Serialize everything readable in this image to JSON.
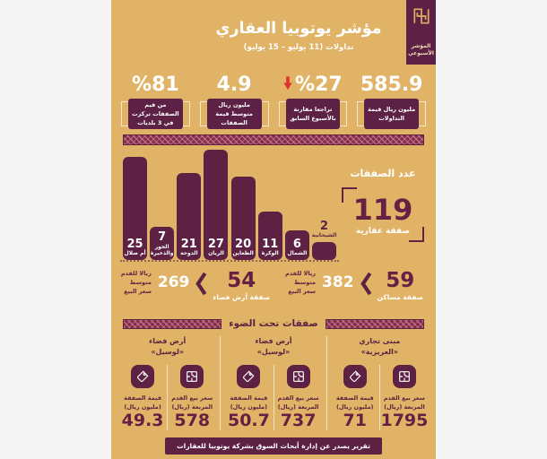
{
  "header": {
    "title": "مؤشر يوتوبيا العقاري",
    "subtitle": "تداولات (11 يوليو – 15 يوليو)",
    "badge": {
      "line1": "المؤشر",
      "line2": "الأسبوعي",
      "logo_icon": "utopia-kufic-logo"
    }
  },
  "colors": {
    "maroon": "#5d2145",
    "tan": "#e1b366",
    "red": "#e0332b",
    "white": "#ffffff"
  },
  "top_stats": [
    {
      "value": "585.9",
      "label": "مليون ريال قيمة التداولات",
      "trend_icon": ""
    },
    {
      "value": "%27",
      "label": "تراجعا مقارنة بالأسبوع السابق",
      "trend_icon": "red-down-arrow"
    },
    {
      "value": "4.9",
      "label": "مليون ريال متوسط قيمة الصفقات",
      "trend_icon": ""
    },
    {
      "value": "%81",
      "label": "من قيم الصفقات تركزت في 3 بلديات",
      "trend_icon": ""
    }
  ],
  "chart_data": {
    "type": "bar",
    "title": "عدد الصفقات",
    "total": "119",
    "total_caption": "صفقة عقارية",
    "categories": [
      "الشيحانية",
      "الشمال",
      "الوكرة",
      "الظعاين",
      "الريان",
      "الدوحة",
      "الخور والذخيرة",
      "أم صلال"
    ],
    "values": [
      2,
      6,
      11,
      20,
      27,
      21,
      7,
      25
    ],
    "ylim": [
      0,
      27
    ],
    "orientation": "right-to-left",
    "bar_color": "#5d2144",
    "grid": false
  },
  "mid_stats": [
    {
      "count": "59",
      "count_caption": "صفقة مساكن",
      "price": "382",
      "price_caption": "ريالا للقدم متوسط سعر البيع"
    },
    {
      "count": "54",
      "count_caption": "صفقة أرض فضاء",
      "price": "269",
      "price_caption": "ريالا للقدم متوسط سعر البيع"
    }
  ],
  "spotlight": {
    "title": "صفقات تحت الضوء",
    "sqft_label": "سعر بيع القدم المربعة (ريال)",
    "value_label": "قيمة الصفقة (مليون ريال)",
    "deals": [
      {
        "name_line1": "مبنى تجاري",
        "name_line2": "«العزيزية»",
        "price_per_sqft": "1795",
        "deal_value": "71"
      },
      {
        "name_line1": "أرض فضاء",
        "name_line2": "«لوسيل»",
        "price_per_sqft": "737",
        "deal_value": "50.7"
      },
      {
        "name_line1": "أرض فضاء",
        "name_line2": "«لوسيل»",
        "price_per_sqft": "578",
        "deal_value": "49.3"
      }
    ]
  },
  "footer": {
    "text": "تقرير يصدر عن إدارة أبحاث السوق بشركة يوتوبيا للعقارات"
  }
}
